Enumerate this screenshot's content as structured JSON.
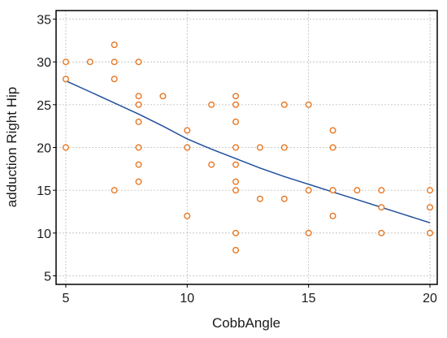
{
  "chart_data": {
    "type": "scatter",
    "title": "",
    "xlabel": "CobbAngle",
    "ylabel": "adduction Right Hip",
    "xlim": [
      4.6,
      20.3
    ],
    "ylim": [
      4,
      36
    ],
    "xticks": [
      5,
      10,
      15,
      20
    ],
    "yticks": [
      5,
      10,
      15,
      20,
      25,
      30,
      35
    ],
    "grid": true,
    "marker_color": "#e87722",
    "line_color": "#1f4e9c",
    "series": [
      {
        "type": "scatter",
        "points": [
          [
            5,
            30
          ],
          [
            5,
            28
          ],
          [
            5,
            20
          ],
          [
            6,
            30
          ],
          [
            7,
            32
          ],
          [
            7,
            30
          ],
          [
            7,
            28
          ],
          [
            7,
            15
          ],
          [
            8,
            30
          ],
          [
            8,
            26
          ],
          [
            8,
            25
          ],
          [
            8,
            23
          ],
          [
            8,
            20
          ],
          [
            8,
            18
          ],
          [
            8,
            16
          ],
          [
            9,
            26
          ],
          [
            10,
            22
          ],
          [
            10,
            20
          ],
          [
            10,
            12
          ],
          [
            11,
            25
          ],
          [
            11,
            18
          ],
          [
            12,
            26
          ],
          [
            12,
            25
          ],
          [
            12,
            23
          ],
          [
            12,
            20
          ],
          [
            12,
            18
          ],
          [
            12,
            16
          ],
          [
            12,
            15
          ],
          [
            12,
            10
          ],
          [
            12,
            8
          ],
          [
            13,
            20
          ],
          [
            13,
            14
          ],
          [
            14,
            25
          ],
          [
            14,
            20
          ],
          [
            14,
            14
          ],
          [
            15,
            25
          ],
          [
            15,
            15
          ],
          [
            15,
            10
          ],
          [
            16,
            22
          ],
          [
            16,
            20
          ],
          [
            16,
            15
          ],
          [
            16,
            12
          ],
          [
            17,
            15
          ],
          [
            18,
            15
          ],
          [
            18,
            13
          ],
          [
            18,
            10
          ],
          [
            20,
            15
          ],
          [
            20,
            13
          ],
          [
            20,
            10
          ]
        ]
      },
      {
        "type": "line",
        "points": [
          [
            5,
            27.8
          ],
          [
            6,
            26.5
          ],
          [
            7,
            25.2
          ],
          [
            8,
            23.9
          ],
          [
            9,
            22.5
          ],
          [
            10,
            21.0
          ],
          [
            11,
            19.8
          ],
          [
            12,
            18.7
          ],
          [
            13,
            17.6
          ],
          [
            14,
            16.6
          ],
          [
            15,
            15.7
          ],
          [
            16,
            14.8
          ],
          [
            17,
            13.9
          ],
          [
            18,
            13.0
          ],
          [
            19,
            12.1
          ],
          [
            20,
            11.2
          ]
        ]
      }
    ]
  }
}
